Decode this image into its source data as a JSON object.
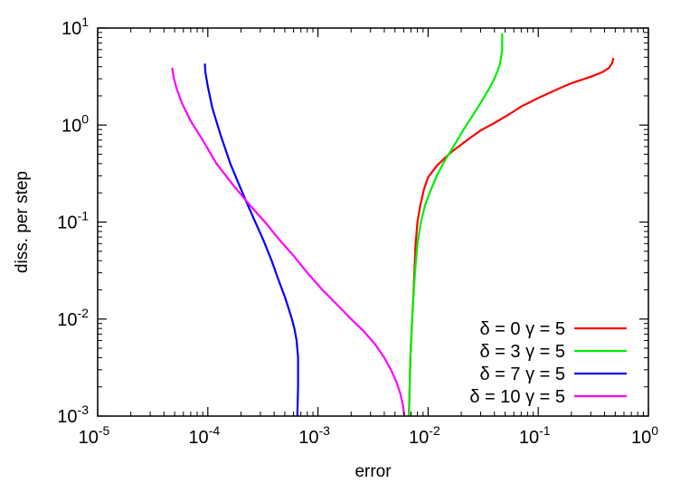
{
  "chart_data": {
    "type": "line",
    "title": "",
    "xlabel": "error",
    "ylabel": "diss. per step",
    "x_scale": "log",
    "y_scale": "log",
    "xlim": [
      1e-05,
      1
    ],
    "ylim": [
      0.001,
      10
    ],
    "grid": false,
    "legend_position": "bottom-right",
    "x_ticks": [
      {
        "base": "10",
        "exp": "-5",
        "value": 1e-05
      },
      {
        "base": "10",
        "exp": "-4",
        "value": 0.0001
      },
      {
        "base": "10",
        "exp": "-3",
        "value": 0.001
      },
      {
        "base": "10",
        "exp": "-2",
        "value": 0.01
      },
      {
        "base": "10",
        "exp": "-1",
        "value": 0.1
      },
      {
        "base": "10",
        "exp": "0",
        "value": 1
      }
    ],
    "y_ticks": [
      {
        "base": "10",
        "exp": "-3",
        "value": 0.001
      },
      {
        "base": "10",
        "exp": "-2",
        "value": 0.01
      },
      {
        "base": "10",
        "exp": "-1",
        "value": 0.1
      },
      {
        "base": "10",
        "exp": "0",
        "value": 1
      },
      {
        "base": "10",
        "exp": "1",
        "value": 10
      }
    ],
    "series": [
      {
        "name": "δ = 0 γ = 5",
        "color": "#ff0000",
        "x": [
          0.0067,
          0.0068,
          0.0069,
          0.0071,
          0.0073,
          0.0075,
          0.0077,
          0.008,
          0.0085,
          0.0092,
          0.01,
          0.012,
          0.014,
          0.016,
          0.02,
          0.025,
          0.03,
          0.04,
          0.055,
          0.07,
          0.1,
          0.15,
          0.2,
          0.3,
          0.38,
          0.44,
          0.47,
          0.48
        ],
        "y": [
          0.001,
          0.002,
          0.004,
          0.008,
          0.015,
          0.03,
          0.06,
          0.1,
          0.15,
          0.22,
          0.29,
          0.38,
          0.45,
          0.52,
          0.63,
          0.76,
          0.88,
          1.05,
          1.3,
          1.55,
          1.9,
          2.35,
          2.7,
          3.15,
          3.5,
          3.9,
          4.4,
          4.9
        ]
      },
      {
        "name": "δ = 3 γ = 5",
        "color": "#00ee00",
        "x": [
          0.0067,
          0.0068,
          0.0069,
          0.0071,
          0.0073,
          0.0076,
          0.008,
          0.0086,
          0.0094,
          0.0105,
          0.012,
          0.014,
          0.017,
          0.021,
          0.026,
          0.031,
          0.036,
          0.04,
          0.043,
          0.045,
          0.046,
          0.047,
          0.047,
          0.047
        ],
        "y": [
          0.001,
          0.002,
          0.004,
          0.008,
          0.015,
          0.03,
          0.06,
          0.1,
          0.15,
          0.21,
          0.3,
          0.42,
          0.6,
          0.9,
          1.3,
          1.8,
          2.4,
          3.0,
          3.7,
          4.3,
          5.0,
          6.0,
          7.5,
          8.8
        ]
      },
      {
        "name": "δ = 7 γ = 5",
        "color": "#0000ff",
        "x": [
          0.00065,
          0.00066,
          0.00066,
          0.00064,
          0.00061,
          0.00058,
          0.00054,
          0.0005,
          0.00044,
          0.00038,
          0.00032,
          0.00027,
          0.00023,
          0.00019,
          0.00016,
          0.00013,
          0.00011,
          0.0001,
          9.5e-05,
          9.4e-05
        ],
        "y": [
          0.001,
          0.002,
          0.004,
          0.006,
          0.008,
          0.01,
          0.013,
          0.017,
          0.025,
          0.04,
          0.065,
          0.1,
          0.15,
          0.25,
          0.4,
          0.8,
          1.5,
          2.5,
          3.5,
          4.3
        ],
        "x_scale_note": ""
      },
      {
        "name": "δ = 10 γ = 5",
        "color": "#ff00ff",
        "x": [
          0.0061,
          0.0059,
          0.0056,
          0.0052,
          0.0046,
          0.004,
          0.0033,
          0.0026,
          0.002,
          0.0015,
          0.0011,
          0.0008,
          0.0006,
          0.00045,
          0.00033,
          0.00024,
          0.00017,
          0.00012,
          9e-05,
          7e-05,
          5.8e-05,
          5.2e-05,
          4.9e-05,
          4.75e-05
        ],
        "y": [
          0.001,
          0.0013,
          0.0017,
          0.0022,
          0.003,
          0.004,
          0.0055,
          0.0075,
          0.01,
          0.014,
          0.02,
          0.03,
          0.045,
          0.065,
          0.1,
          0.15,
          0.24,
          0.4,
          0.7,
          1.1,
          1.7,
          2.4,
          3.1,
          3.9
        ]
      }
    ]
  }
}
